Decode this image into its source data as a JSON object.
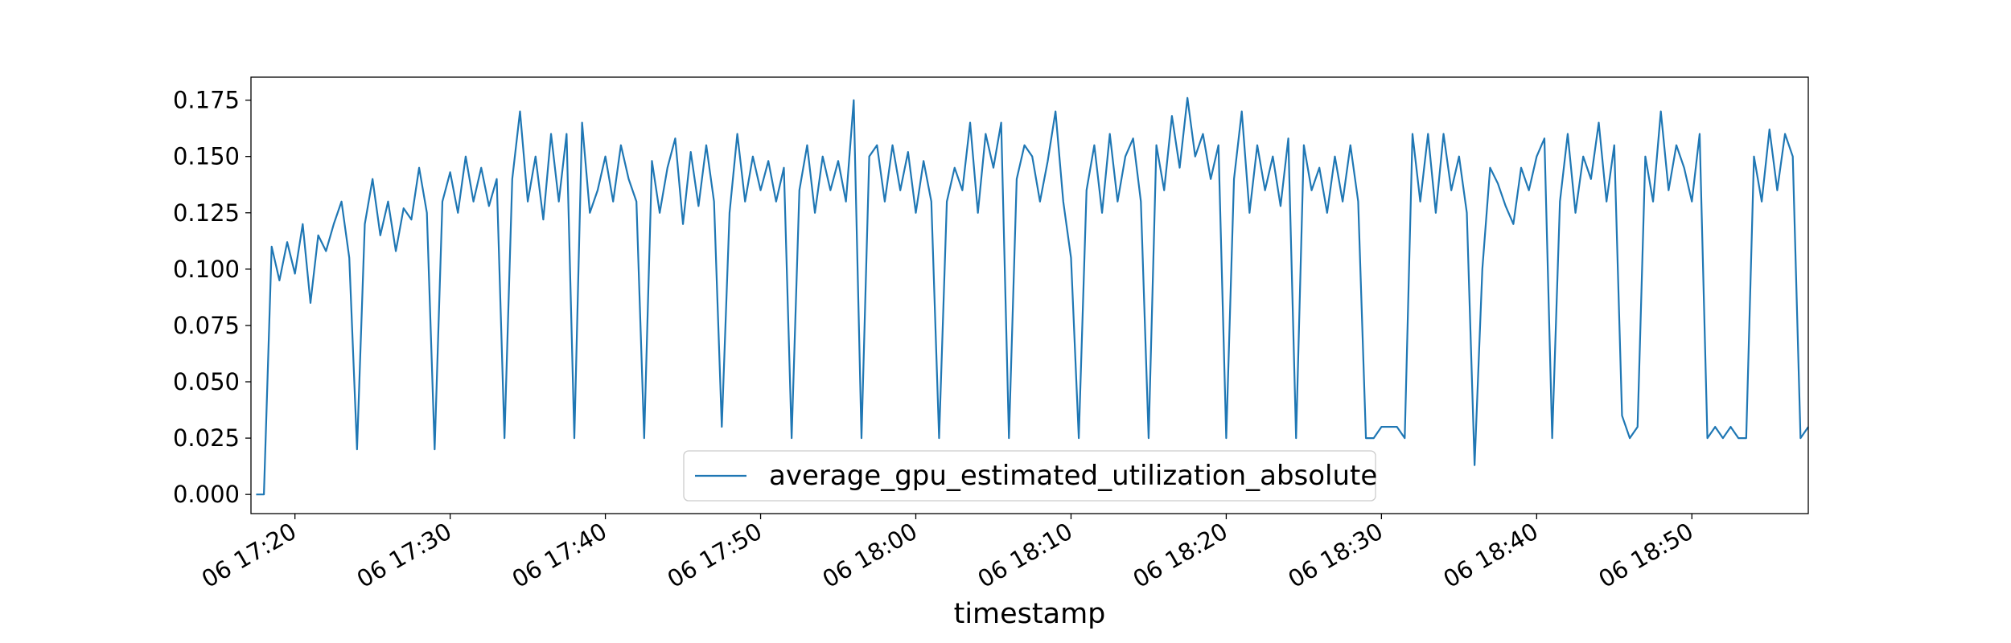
{
  "chart_data": {
    "type": "line",
    "xlabel": "timestamp",
    "legend": "lower center",
    "grid": false,
    "xlim": [
      "06 17:17:10",
      "06 18:57:30"
    ],
    "xticks": [
      "06 17:20",
      "06 17:30",
      "06 17:40",
      "06 17:50",
      "06 18:00",
      "06 18:10",
      "06 18:20",
      "06 18:30",
      "06 18:40",
      "06 18:50"
    ],
    "ylim": [
      -0.0085,
      0.1852
    ],
    "yticks": [
      {
        "value": 0,
        "label": "0.000"
      },
      {
        "value": 0.025,
        "label": "0.025"
      },
      {
        "value": 0.05,
        "label": "0.050"
      },
      {
        "value": 0.075,
        "label": "0.075"
      },
      {
        "value": 0.1,
        "label": "0.100"
      },
      {
        "value": 0.125,
        "label": "0.125"
      },
      {
        "value": 0.15,
        "label": "0.150"
      },
      {
        "value": 0.175,
        "label": "0.175"
      }
    ],
    "x": [
      "06 17:17:30",
      "06 17:18:00",
      "06 17:18:30",
      "06 17:19:00",
      "06 17:19:30",
      "06 17:20:00",
      "06 17:20:30",
      "06 17:21:00",
      "06 17:21:30",
      "06 17:22:00",
      "06 17:22:30",
      "06 17:23:00",
      "06 17:23:30",
      "06 17:24:00",
      "06 17:24:30",
      "06 17:25:00",
      "06 17:25:30",
      "06 17:26:00",
      "06 17:26:30",
      "06 17:27:00",
      "06 17:27:30",
      "06 17:28:00",
      "06 17:28:30",
      "06 17:29:00",
      "06 17:29:30",
      "06 17:30:00",
      "06 17:30:30",
      "06 17:31:00",
      "06 17:31:30",
      "06 17:32:00",
      "06 17:32:30",
      "06 17:33:00",
      "06 17:33:30",
      "06 17:34:00",
      "06 17:34:30",
      "06 17:35:00",
      "06 17:35:30",
      "06 17:36:00",
      "06 17:36:30",
      "06 17:37:00",
      "06 17:37:30",
      "06 17:38:00",
      "06 17:38:30",
      "06 17:39:00",
      "06 17:39:30",
      "06 17:40:00",
      "06 17:40:30",
      "06 17:41:00",
      "06 17:41:30",
      "06 17:42:00",
      "06 17:42:30",
      "06 17:43:00",
      "06 17:43:30",
      "06 17:44:00",
      "06 17:44:30",
      "06 17:45:00",
      "06 17:45:30",
      "06 17:46:00",
      "06 17:46:30",
      "06 17:47:00",
      "06 17:47:30",
      "06 17:48:00",
      "06 17:48:30",
      "06 17:49:00",
      "06 17:49:30",
      "06 17:50:00",
      "06 17:50:30",
      "06 17:51:00",
      "06 17:51:30",
      "06 17:52:00",
      "06 17:52:30",
      "06 17:53:00",
      "06 17:53:30",
      "06 17:54:00",
      "06 17:54:30",
      "06 17:55:00",
      "06 17:55:30",
      "06 17:56:00",
      "06 17:56:30",
      "06 17:57:00",
      "06 17:57:30",
      "06 17:58:00",
      "06 17:58:30",
      "06 17:59:00",
      "06 17:59:30",
      "06 18:00:00",
      "06 18:00:30",
      "06 18:01:00",
      "06 18:01:30",
      "06 18:02:00",
      "06 18:02:30",
      "06 18:03:00",
      "06 18:03:30",
      "06 18:04:00",
      "06 18:04:30",
      "06 18:05:00",
      "06 18:05:30",
      "06 18:06:00",
      "06 18:06:30",
      "06 18:07:00",
      "06 18:07:30",
      "06 18:08:00",
      "06 18:08:30",
      "06 18:09:00",
      "06 18:09:30",
      "06 18:10:00",
      "06 18:10:30",
      "06 18:11:00",
      "06 18:11:30",
      "06 18:12:00",
      "06 18:12:30",
      "06 18:13:00",
      "06 18:13:30",
      "06 18:14:00",
      "06 18:14:30",
      "06 18:15:00",
      "06 18:15:30",
      "06 18:16:00",
      "06 18:16:30",
      "06 18:17:00",
      "06 18:17:30",
      "06 18:18:00",
      "06 18:18:30",
      "06 18:19:00",
      "06 18:19:30",
      "06 18:20:00",
      "06 18:20:30",
      "06 18:21:00",
      "06 18:21:30",
      "06 18:22:00",
      "06 18:22:30",
      "06 18:23:00",
      "06 18:23:30",
      "06 18:24:00",
      "06 18:24:30",
      "06 18:25:00",
      "06 18:25:30",
      "06 18:26:00",
      "06 18:26:30",
      "06 18:27:00",
      "06 18:27:30",
      "06 18:28:00",
      "06 18:28:30",
      "06 18:29:00",
      "06 18:29:30",
      "06 18:30:00",
      "06 18:30:30",
      "06 18:31:00",
      "06 18:31:30",
      "06 18:32:00",
      "06 18:32:30",
      "06 18:33:00",
      "06 18:33:30",
      "06 18:34:00",
      "06 18:34:30",
      "06 18:35:00",
      "06 18:35:30",
      "06 18:36:00",
      "06 18:36:30",
      "06 18:37:00",
      "06 18:37:30",
      "06 18:38:00",
      "06 18:38:30",
      "06 18:39:00",
      "06 18:39:30",
      "06 18:40:00",
      "06 18:40:30",
      "06 18:41:00",
      "06 18:41:30",
      "06 18:42:00",
      "06 18:42:30",
      "06 18:43:00",
      "06 18:43:30",
      "06 18:44:00",
      "06 18:44:30",
      "06 18:45:00",
      "06 18:45:30",
      "06 18:46:00",
      "06 18:46:30",
      "06 18:47:00",
      "06 18:47:30",
      "06 18:48:00",
      "06 18:48:30",
      "06 18:49:00",
      "06 18:49:30",
      "06 18:50:00",
      "06 18:50:30",
      "06 18:51:00",
      "06 18:51:30",
      "06 18:52:00",
      "06 18:52:30",
      "06 18:53:00",
      "06 18:53:30",
      "06 18:54:00",
      "06 18:54:30",
      "06 18:55:00",
      "06 18:55:30",
      "06 18:56:00",
      "06 18:56:30",
      "06 18:57:00",
      "06 18:57:30"
    ],
    "series": [
      {
        "name": "average_gpu_estimated_utilization_absolute",
        "color": "#1f77b4",
        "values": [
          0.0,
          0.0,
          0.11,
          0.095,
          0.112,
          0.098,
          0.12,
          0.085,
          0.115,
          0.108,
          0.12,
          0.13,
          0.105,
          0.02,
          0.12,
          0.14,
          0.115,
          0.13,
          0.108,
          0.127,
          0.122,
          0.145,
          0.125,
          0.02,
          0.13,
          0.143,
          0.125,
          0.15,
          0.13,
          0.145,
          0.128,
          0.14,
          0.025,
          0.14,
          0.17,
          0.13,
          0.15,
          0.122,
          0.16,
          0.13,
          0.16,
          0.025,
          0.165,
          0.125,
          0.135,
          0.15,
          0.13,
          0.155,
          0.14,
          0.13,
          0.025,
          0.148,
          0.125,
          0.145,
          0.158,
          0.12,
          0.152,
          0.128,
          0.155,
          0.13,
          0.03,
          0.125,
          0.16,
          0.13,
          0.15,
          0.135,
          0.148,
          0.13,
          0.145,
          0.025,
          0.135,
          0.155,
          0.125,
          0.15,
          0.135,
          0.148,
          0.13,
          0.175,
          0.025,
          0.15,
          0.155,
          0.13,
          0.155,
          0.135,
          0.152,
          0.125,
          0.148,
          0.13,
          0.025,
          0.13,
          0.145,
          0.135,
          0.165,
          0.125,
          0.16,
          0.145,
          0.165,
          0.025,
          0.14,
          0.155,
          0.15,
          0.13,
          0.148,
          0.17,
          0.13,
          0.105,
          0.025,
          0.135,
          0.155,
          0.125,
          0.16,
          0.13,
          0.15,
          0.158,
          0.13,
          0.025,
          0.155,
          0.135,
          0.168,
          0.145,
          0.176,
          0.15,
          0.16,
          0.14,
          0.155,
          0.025,
          0.14,
          0.17,
          0.125,
          0.155,
          0.135,
          0.15,
          0.128,
          0.158,
          0.025,
          0.155,
          0.135,
          0.145,
          0.125,
          0.15,
          0.13,
          0.155,
          0.13,
          0.025,
          0.025,
          0.03,
          0.03,
          0.03,
          0.025,
          0.16,
          0.13,
          0.16,
          0.125,
          0.16,
          0.135,
          0.15,
          0.125,
          0.013,
          0.1,
          0.145,
          0.138,
          0.128,
          0.12,
          0.145,
          0.135,
          0.15,
          0.158,
          0.025,
          0.13,
          0.16,
          0.125,
          0.15,
          0.14,
          0.165,
          0.13,
          0.155,
          0.035,
          0.025,
          0.03,
          0.15,
          0.13,
          0.17,
          0.135,
          0.155,
          0.145,
          0.13,
          0.16,
          0.025,
          0.03,
          0.025,
          0.03,
          0.025,
          0.025,
          0.15,
          0.13,
          0.162,
          0.135,
          0.16,
          0.15,
          0.025,
          0.03
        ]
      }
    ]
  }
}
